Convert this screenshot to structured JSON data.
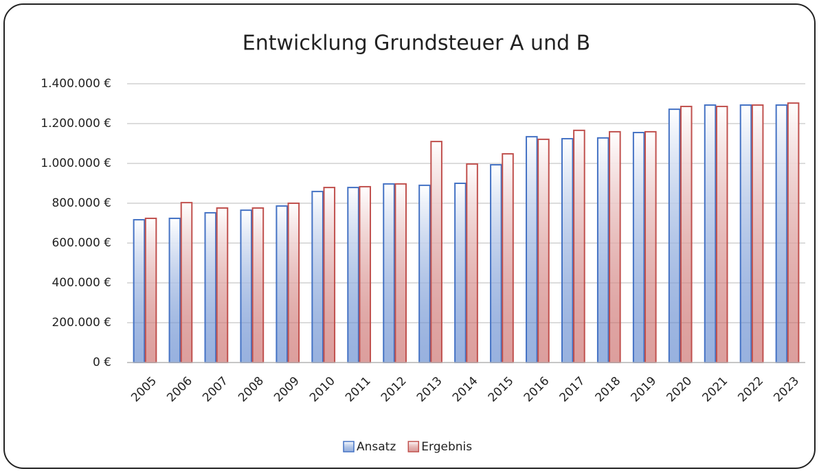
{
  "chart_data": {
    "type": "bar",
    "title": "Entwicklung  Grundsteuer  A und B",
    "categories": [
      "2005",
      "2006",
      "2007",
      "2008",
      "2009",
      "2010",
      "2011",
      "2012",
      "2013",
      "2014",
      "2015",
      "2016",
      "2017",
      "2018",
      "2019",
      "2020",
      "2021",
      "2022",
      "2023"
    ],
    "series": [
      {
        "name": "Ansatz",
        "color": "#4472c4",
        "values": [
          717000,
          724000,
          752000,
          765000,
          786000,
          859000,
          879000,
          897000,
          890000,
          900000,
          993000,
          1134000,
          1124000,
          1128000,
          1155000,
          1272000,
          1293000,
          1293000,
          1293000
        ]
      },
      {
        "name": "Ergebnis",
        "color": "#c0504d",
        "values": [
          724000,
          803000,
          776000,
          776000,
          800000,
          879000,
          883000,
          897000,
          1110000,
          997000,
          1048000,
          1121000,
          1166000,
          1159000,
          1159000,
          1286000,
          1286000,
          1293000,
          1303000
        ]
      }
    ],
    "ylim": [
      0,
      1400000
    ],
    "yticks": [
      {
        "value": 0,
        "label": "0 €"
      },
      {
        "value": 200000,
        "label": "200.000 €"
      },
      {
        "value": 400000,
        "label": "400.000 €"
      },
      {
        "value": 600000,
        "label": "600.000 €"
      },
      {
        "value": 800000,
        "label": "800.000 €"
      },
      {
        "value": 1000000,
        "label": "1.000.000 €"
      },
      {
        "value": 1200000,
        "label": "1.200.000 €"
      },
      {
        "value": 1400000,
        "label": "1.400.000 €"
      }
    ],
    "grid": true,
    "legend": "bottom"
  }
}
